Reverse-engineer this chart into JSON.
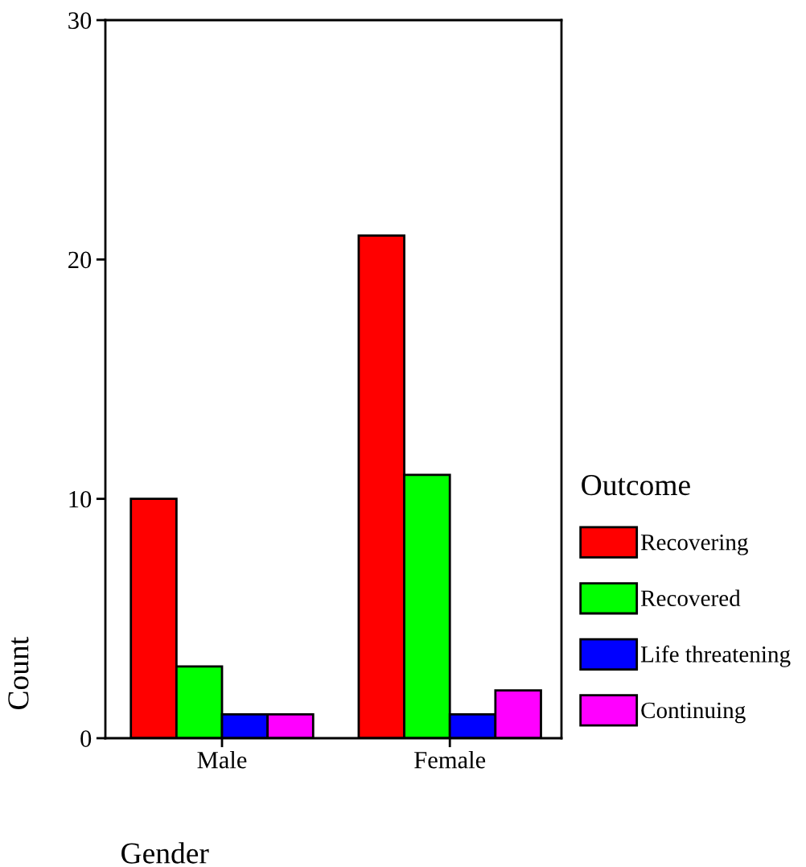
{
  "chart_data": {
    "type": "bar",
    "xlabel": "Gender",
    "ylabel": "Count",
    "legend_title": "Outcome",
    "categories": [
      "Male",
      "Female"
    ],
    "series": [
      {
        "name": "Recovering",
        "color": "#ff0000",
        "values": [
          10,
          21
        ]
      },
      {
        "name": "Recovered",
        "color": "#00ff00",
        "values": [
          3,
          11
        ]
      },
      {
        "name": "Life threatening",
        "color": "#0000ff",
        "values": [
          1,
          1
        ]
      },
      {
        "name": "Continuing",
        "color": "#ff00ff",
        "values": [
          1,
          2
        ]
      }
    ],
    "ylim": [
      0,
      30
    ],
    "yticks": [
      0,
      10,
      20,
      30
    ],
    "grid": false,
    "legend": "right"
  }
}
